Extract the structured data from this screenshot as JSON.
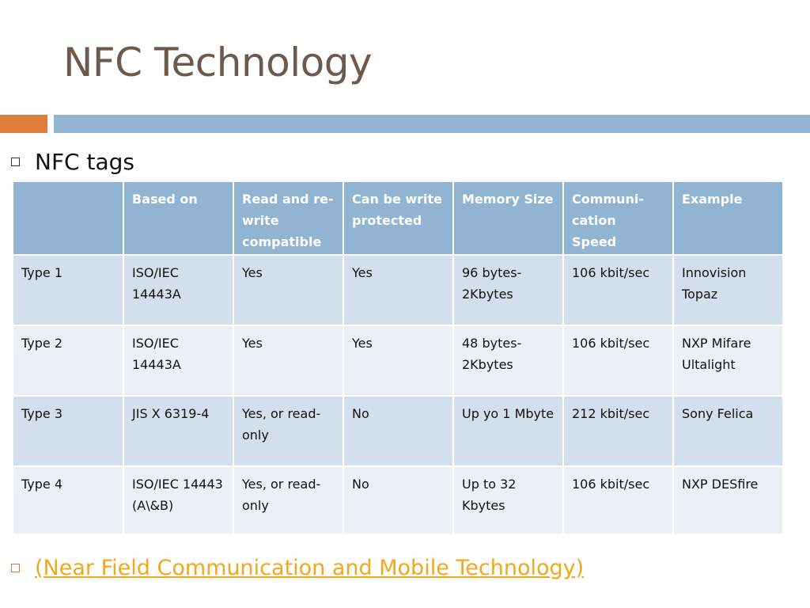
{
  "slide": {
    "title": "NFC Technology",
    "bullet1": "NFC tags",
    "link_text": "(Near Field Communication and Mobile Technology)",
    "colors": {
      "title": "#6b5a4e",
      "accent_orange": "#e07d3c",
      "accent_blue": "#91b4d2",
      "link": "#f0a81c"
    }
  },
  "table": {
    "headers": [
      "",
      "Based on",
      "Read and re-write compatible",
      "Can be write protected",
      "Memory Size",
      "Communi-cation Speed",
      "Example"
    ],
    "rows": [
      [
        "Type 1",
        "ISO/IEC 14443A",
        "Yes",
        "Yes",
        "96 bytes-2Kbytes",
        "106 kbit/sec",
        "Innovision Topaz"
      ],
      [
        "Type 2",
        "ISO/IEC 14443A",
        "Yes",
        "Yes",
        "48 bytes-2Kbytes",
        "106 kbit/sec",
        "NXP Mifare Ultalight"
      ],
      [
        "Type 3",
        "JIS X 6319-4",
        "Yes, or read-only",
        "No",
        "Up yo 1 Mbyte",
        "212 kbit/sec",
        "Sony Felica"
      ],
      [
        "Type 4",
        "ISO/IEC 14443 (A\\&B)",
        "Yes, or read-only",
        "No",
        "Up to 32 Kbytes",
        "106 kbit/sec",
        "NXP DESfire"
      ]
    ]
  }
}
